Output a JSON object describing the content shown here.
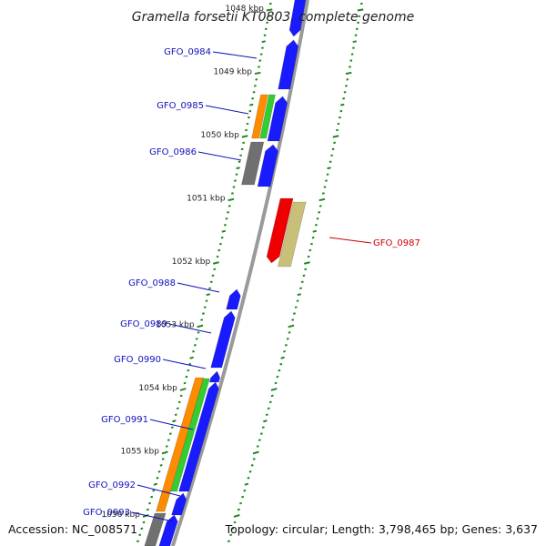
{
  "title": "Gramella forsetii KT0803, complete genome",
  "accession": "Accession: NC_008571",
  "topology": "Topology: circular; Length: 3,798,465 bp; Genes: 3,637",
  "colors": {
    "backbone": "#9a9a9a",
    "cds": "#1a1aff",
    "rrna_orange": "#ff8c00",
    "rrna_green": "#33cc33",
    "gray": "#707070",
    "red": "#ee0000",
    "khaki": "#c8bf78",
    "tick": "#1e8a1e",
    "label_blue": "#1010bb",
    "label_red": "#cc0000"
  },
  "kbp_ticks": [
    {
      "label": "1048 kbp",
      "kbp": 1048
    },
    {
      "label": "1049 kbp",
      "kbp": 1049
    },
    {
      "label": "1050 kbp",
      "kbp": 1050
    },
    {
      "label": "1051 kbp",
      "kbp": 1051
    },
    {
      "label": "1052 kbp",
      "kbp": 1052
    },
    {
      "label": "1053 kbp",
      "kbp": 1053
    },
    {
      "label": "1054 kbp",
      "kbp": 1054
    },
    {
      "label": "1055 kbp",
      "kbp": 1055
    },
    {
      "label": "1056 kbp",
      "kbp": 1056
    }
  ],
  "gene_labels": [
    {
      "name": "GFO_0984",
      "color": "label_blue"
    },
    {
      "name": "GFO_0985",
      "color": "label_blue"
    },
    {
      "name": "GFO_0986",
      "color": "label_blue"
    },
    {
      "name": "GFO_0987",
      "color": "label_red"
    },
    {
      "name": "GFO_0988",
      "color": "label_blue"
    },
    {
      "name": "GFO_0989",
      "color": "label_blue"
    },
    {
      "name": "GFO_0990",
      "color": "label_blue"
    },
    {
      "name": "GFO_0991",
      "color": "label_blue"
    },
    {
      "name": "GFO_0992",
      "color": "label_blue"
    },
    {
      "name": "GFO_0993",
      "color": "label_blue"
    }
  ]
}
